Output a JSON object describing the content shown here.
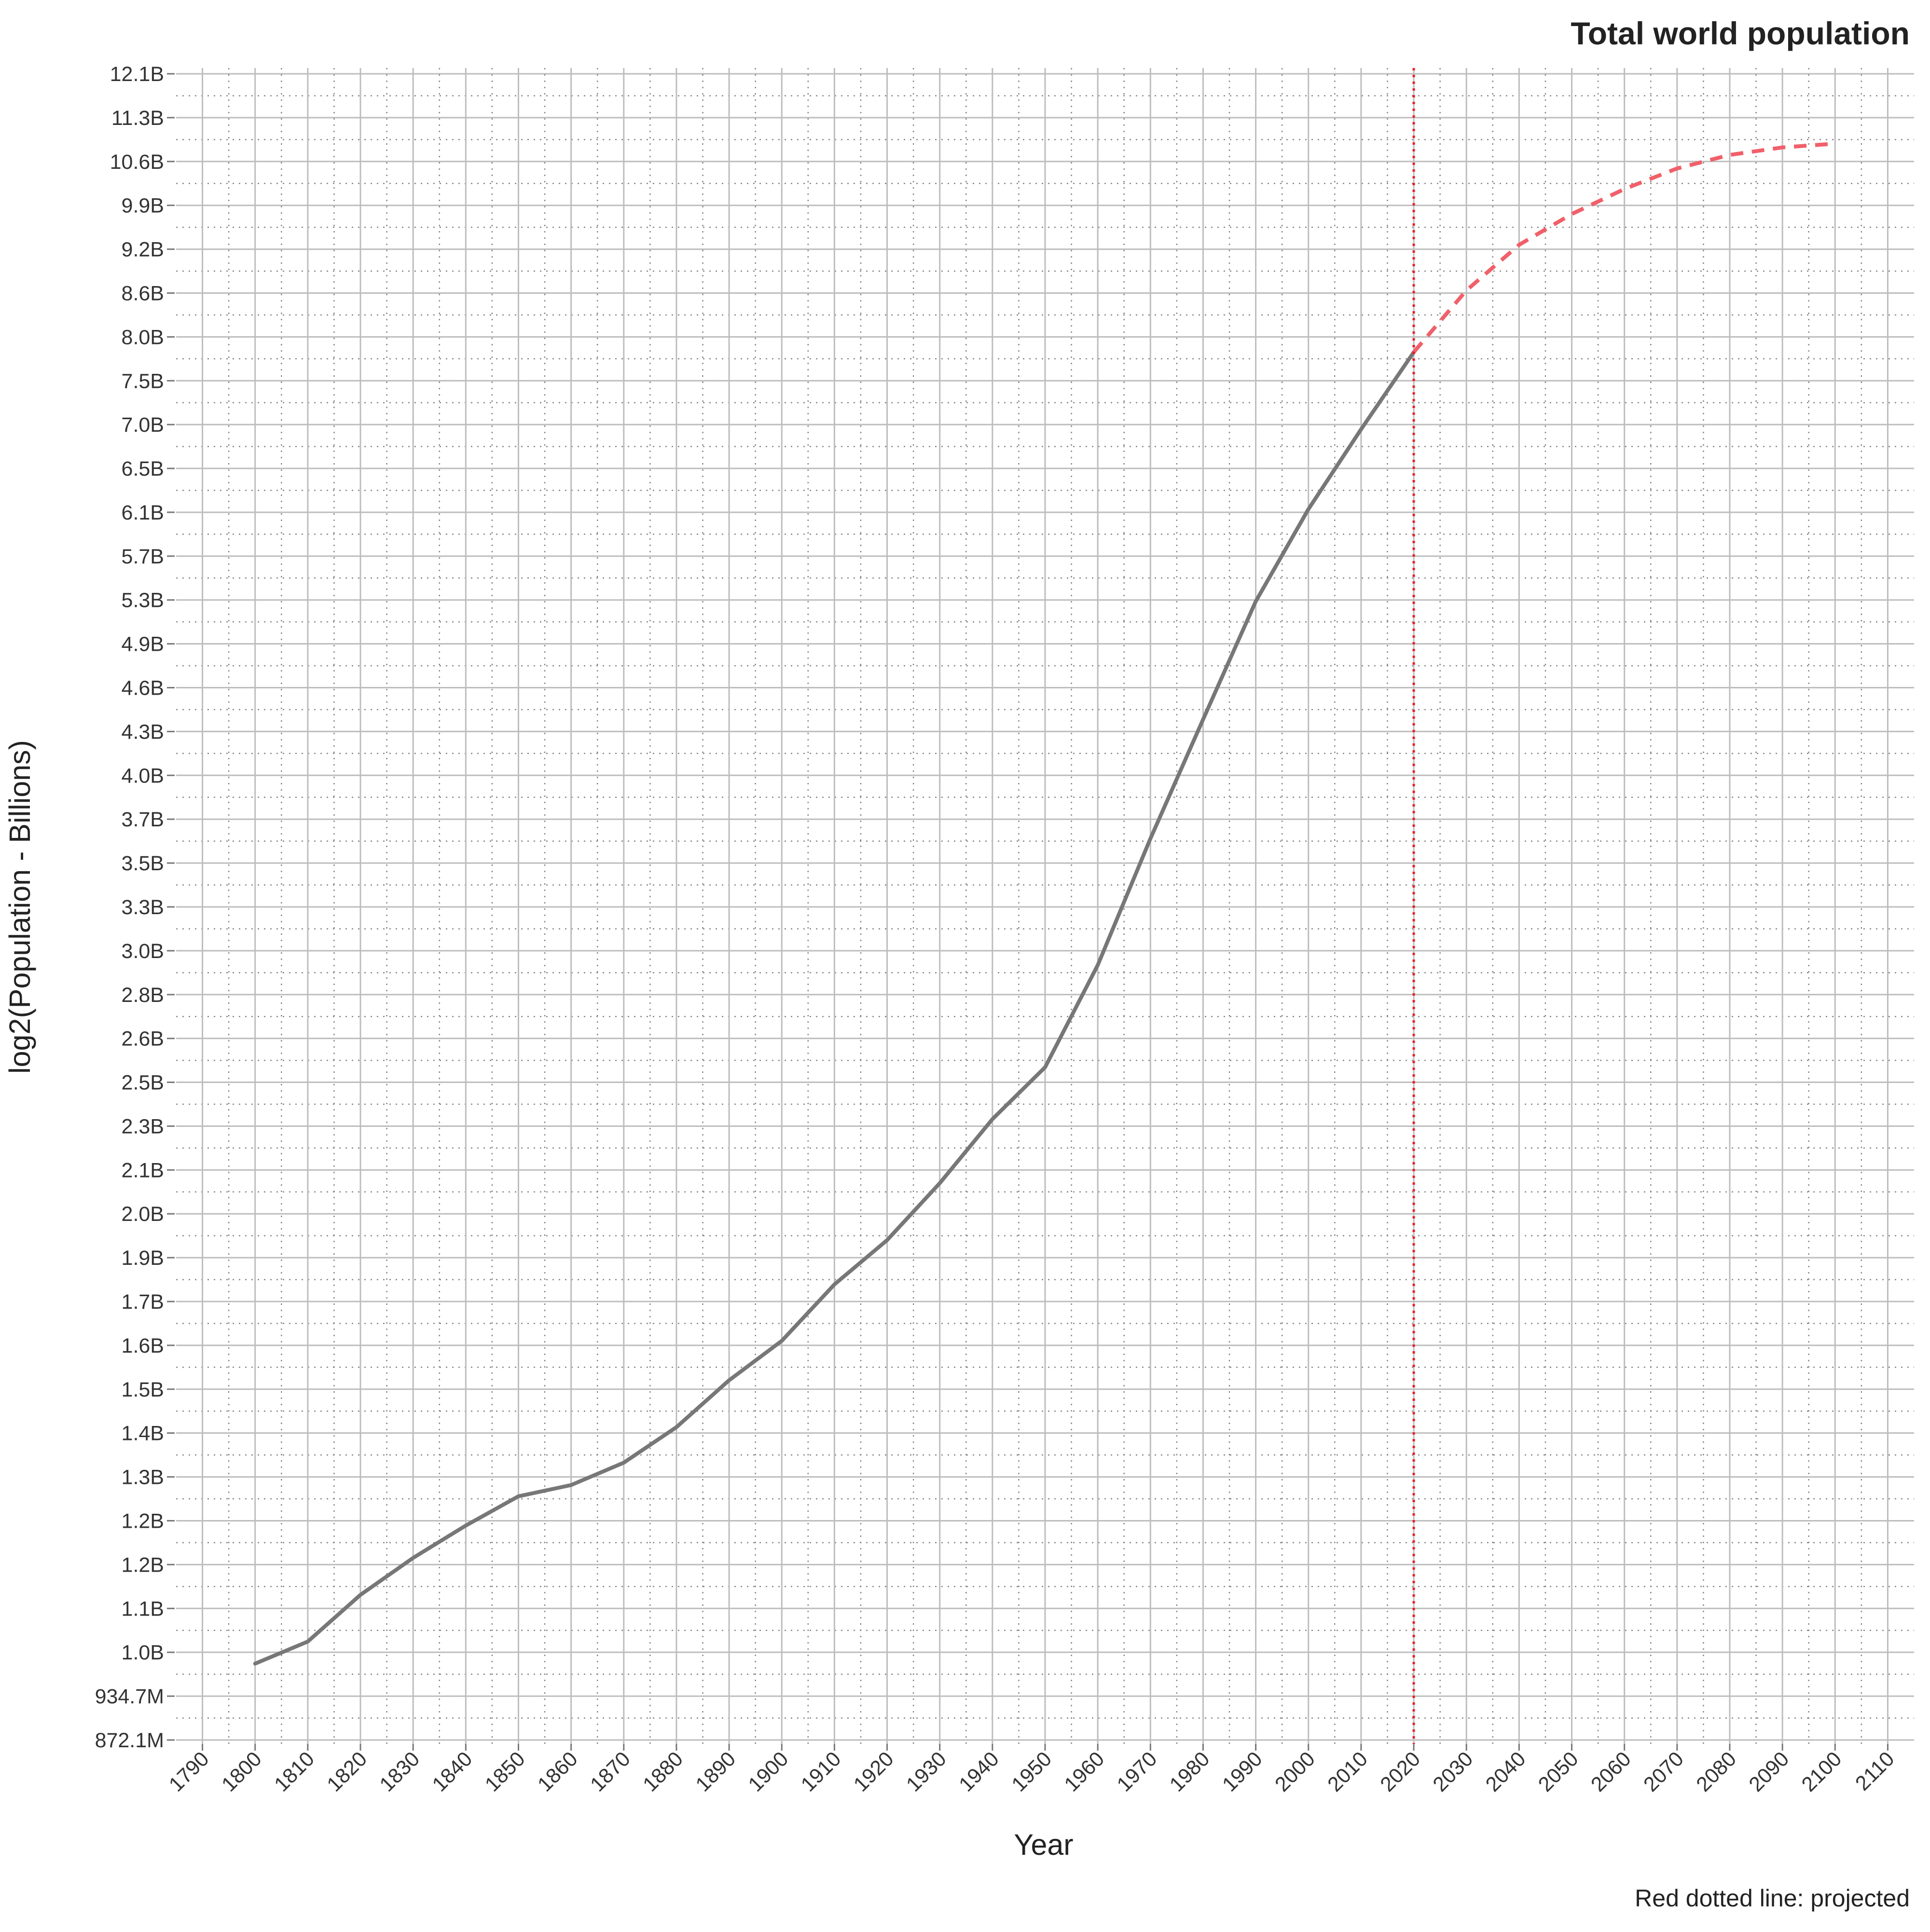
{
  "chart_data": {
    "type": "line",
    "title": "Total world population",
    "x_label": "Year",
    "y_label": "log2(Population - Billions)",
    "caption": "Red dotted line: projected",
    "y_log_base": 2,
    "grid": true,
    "minor_grid": true,
    "xlim": [
      1785,
      2115
    ],
    "xticks": [
      1790,
      1800,
      1810,
      1820,
      1830,
      1840,
      1850,
      1860,
      1870,
      1880,
      1890,
      1900,
      1910,
      1920,
      1930,
      1940,
      1950,
      1960,
      1970,
      1980,
      1990,
      2000,
      2010,
      2020,
      2030,
      2040,
      2050,
      2060,
      2070,
      2080,
      2090,
      2100,
      2110
    ],
    "ylim": [
      872100000,
      12147100000
    ],
    "yticks": [
      {
        "value": 872100000,
        "label": "872.1M"
      },
      {
        "value": 934700000,
        "label": "934.7M"
      },
      {
        "value": 1001800000,
        "label": "1.0B"
      },
      {
        "value": 1073700000,
        "label": "1.1B"
      },
      {
        "value": 1150800000,
        "label": "1.2B"
      },
      {
        "value": 1233400000,
        "label": "1.2B"
      },
      {
        "value": 1321900000,
        "label": "1.3B"
      },
      {
        "value": 1416800000,
        "label": "1.4B"
      },
      {
        "value": 1518500000,
        "label": "1.5B"
      },
      {
        "value": 1627500000,
        "label": "1.6B"
      },
      {
        "value": 1744200000,
        "label": "1.7B"
      },
      {
        "value": 1869400000,
        "label": "1.9B"
      },
      {
        "value": 2003600000,
        "label": "2.0B"
      },
      {
        "value": 2147400000,
        "label": "2.1B"
      },
      {
        "value": 2301500000,
        "label": "2.3B"
      },
      {
        "value": 2466700000,
        "label": "2.5B"
      },
      {
        "value": 2643700000,
        "label": "2.6B"
      },
      {
        "value": 2833400000,
        "label": "2.8B"
      },
      {
        "value": 3036800000,
        "label": "3.0B"
      },
      {
        "value": 3254800000,
        "label": "3.3B"
      },
      {
        "value": 3488400000,
        "label": "3.5B"
      },
      {
        "value": 3738800000,
        "label": "3.7B"
      },
      {
        "value": 4007100000,
        "label": "4.0B"
      },
      {
        "value": 4294700000,
        "label": "4.3B"
      },
      {
        "value": 4602900000,
        "label": "4.6B"
      },
      {
        "value": 4933300000,
        "label": "4.9B"
      },
      {
        "value": 5287400000,
        "label": "5.3B"
      },
      {
        "value": 5666900000,
        "label": "5.7B"
      },
      {
        "value": 6073600000,
        "label": "6.1B"
      },
      {
        "value": 6509500000,
        "label": "6.5B"
      },
      {
        "value": 6976700000,
        "label": "7.0B"
      },
      {
        "value": 7477500000,
        "label": "7.5B"
      },
      {
        "value": 8014100000,
        "label": "8.0B"
      },
      {
        "value": 8589300000,
        "label": "8.6B"
      },
      {
        "value": 9205800000,
        "label": "9.2B"
      },
      {
        "value": 9866500000,
        "label": "9.9B"
      },
      {
        "value": 10574700000,
        "label": "10.6B"
      },
      {
        "value": 11333700000,
        "label": "11.3B"
      },
      {
        "value": 12147100000,
        "label": "12.1B"
      }
    ],
    "vline": {
      "x": 2020,
      "color": "#e8202a",
      "style": "dotted"
    },
    "series": [
      {
        "color": "#777777",
        "style": "solid",
        "x": [
          1800,
          1810,
          1820,
          1830,
          1840,
          1850,
          1860,
          1870,
          1880,
          1890,
          1900,
          1910,
          1920,
          1930,
          1940,
          1950,
          1960,
          1970,
          1980,
          1990,
          2000,
          2010,
          2020
        ],
        "values": [
          984000000,
          1019000000,
          1097000000,
          1163000000,
          1224000000,
          1282000000,
          1305000000,
          1352000000,
          1430000000,
          1540000000,
          1639000000,
          1792000000,
          1922000000,
          2103000000,
          2327000000,
          2526000000,
          2969000000,
          3626000000,
          4378000000,
          5276000000,
          6104000000,
          6925000000,
          7823000000
        ]
      },
      {
        "color": "#f0606a",
        "style": "dashed",
        "x": [
          2020,
          2030,
          2040,
          2050,
          2060,
          2070,
          2080,
          2090,
          2100
        ],
        "values": [
          7823000000,
          8625000000,
          9270000000,
          9732000000,
          10125000000,
          10459000000,
          10686000000,
          10813000000,
          10877000000
        ]
      }
    ]
  }
}
